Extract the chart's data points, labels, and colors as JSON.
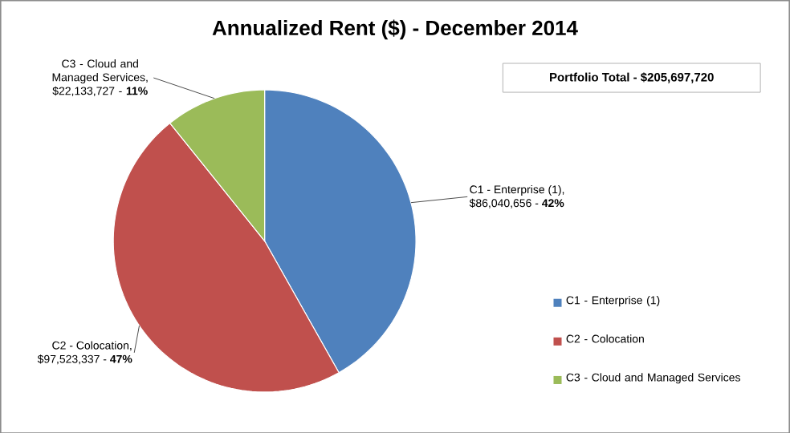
{
  "chart_data": {
    "type": "pie",
    "title": "Annualized Rent ($) - December 2014",
    "categories": [
      "C1 - Enterprise (1)",
      "C2 - Colocation",
      "C3 - Cloud and Managed Services"
    ],
    "values": [
      86040656,
      97523337,
      22133727
    ],
    "colors": [
      "#4f81bd",
      "#c0504d",
      "#9bbb59"
    ],
    "value_labels": [
      "C1 - Enterprise (1), $86,040,656 - **42%**",
      "C2 - Colocation, $97,523,337 - **47%**",
      "C3 - Cloud and Managed Services, $22,133,727 - **11%**"
    ],
    "annotations": [
      "**Portfolio Total  -  $205,697,720**"
    ],
    "legend": "right"
  }
}
